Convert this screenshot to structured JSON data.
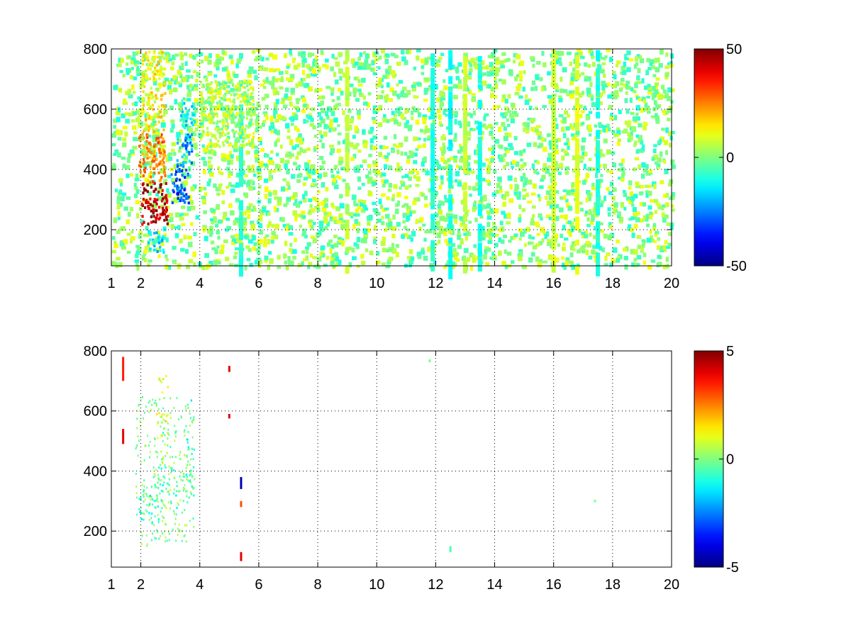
{
  "chart_data": [
    {
      "type": "heatmap",
      "title": "",
      "xlabel": "",
      "ylabel": "",
      "xlim": [
        1,
        20
      ],
      "ylim": [
        80,
        800
      ],
      "xticks": [
        "1",
        "2",
        "4",
        "6",
        "8",
        "10",
        "12",
        "14",
        "16",
        "18",
        "20"
      ],
      "yticks": [
        "200",
        "400",
        "600",
        "800"
      ],
      "grid": true,
      "colorbar": {
        "colormap": "jet",
        "range": [
          -50,
          50
        ],
        "ticks": [
          "-50",
          "0",
          "50"
        ]
      },
      "regions": [
        {
          "x": [
            2.0,
            2.9
          ],
          "y": [
            220,
            360
          ],
          "value": 45
        },
        {
          "x": [
            1.9,
            2.8
          ],
          "y": [
            360,
            520
          ],
          "value": 25
        },
        {
          "x": [
            2.0,
            2.8
          ],
          "y": [
            520,
            800
          ],
          "value": 12
        },
        {
          "x": [
            3.0,
            3.6
          ],
          "y": [
            280,
            400
          ],
          "value": -30
        },
        {
          "x": [
            3.2,
            3.7
          ],
          "y": [
            400,
            520
          ],
          "value": -22
        },
        {
          "x": [
            3.3,
            3.8
          ],
          "y": [
            540,
            640
          ],
          "value": -12
        },
        {
          "x": [
            4.0,
            5.8
          ],
          "y": [
            480,
            700
          ],
          "value": 6
        },
        {
          "x": [
            2.2,
            2.8
          ],
          "y": [
            120,
            200
          ],
          "value": -15
        }
      ],
      "stripes": [
        {
          "x": 11.9,
          "value": -10
        },
        {
          "x": 12.5,
          "value": -12
        },
        {
          "x": 13.5,
          "value": -10
        },
        {
          "x": 13.0,
          "value": 8
        },
        {
          "x": 16.8,
          "value": 10
        },
        {
          "x": 17.5,
          "value": -10
        },
        {
          "x": 16.0,
          "value": 8
        },
        {
          "x": 9.0,
          "value": 6
        },
        {
          "x": 5.4,
          "value": -8
        }
      ]
    },
    {
      "type": "heatmap",
      "title": "",
      "xlabel": "",
      "ylabel": "",
      "xlim": [
        1,
        20
      ],
      "ylim": [
        80,
        800
      ],
      "xticks": [
        "1",
        "2",
        "4",
        "6",
        "8",
        "10",
        "12",
        "14",
        "16",
        "18",
        "20"
      ],
      "yticks": [
        "200",
        "400",
        "600",
        "800"
      ],
      "grid": true,
      "colorbar": {
        "colormap": "jet",
        "range": [
          -5,
          5
        ],
        "ticks": [
          "-5",
          "0",
          "5"
        ]
      },
      "regions": [
        {
          "x": [
            1.9,
            2.6
          ],
          "y": [
            200,
            340
          ],
          "value": -0.8
        },
        {
          "x": [
            2.4,
            3.2
          ],
          "y": [
            280,
            420
          ],
          "value": -0.5
        },
        {
          "x": [
            3.2,
            3.8
          ],
          "y": [
            300,
            450
          ],
          "value": -0.4
        },
        {
          "x": [
            3.5,
            3.8
          ],
          "y": [
            450,
            650
          ],
          "value": -0.6
        },
        {
          "x": [
            2.5,
            2.9
          ],
          "y": [
            420,
            720
          ],
          "value": 0.8
        }
      ],
      "spots": [
        {
          "x": 1.4,
          "y": [
            700,
            780
          ],
          "value": 3.5
        },
        {
          "x": 1.4,
          "y": [
            490,
            540
          ],
          "value": 4.0
        },
        {
          "x": 5.0,
          "y": [
            730,
            750
          ],
          "value": 4.0
        },
        {
          "x": 5.0,
          "y": [
            575,
            590
          ],
          "value": 4.0
        },
        {
          "x": 5.4,
          "y": [
            340,
            380
          ],
          "value": -4.5
        },
        {
          "x": 5.4,
          "y": [
            280,
            300
          ],
          "value": 3.0
        },
        {
          "x": 5.4,
          "y": [
            100,
            130
          ],
          "value": 4.0
        },
        {
          "x": 11.8,
          "y": [
            762,
            772
          ],
          "value": 0.0
        },
        {
          "x": 12.5,
          "y": [
            130,
            150
          ],
          "value": -0.5
        },
        {
          "x": 17.4,
          "y": [
            296,
            304
          ],
          "value": 0.0
        }
      ]
    }
  ]
}
